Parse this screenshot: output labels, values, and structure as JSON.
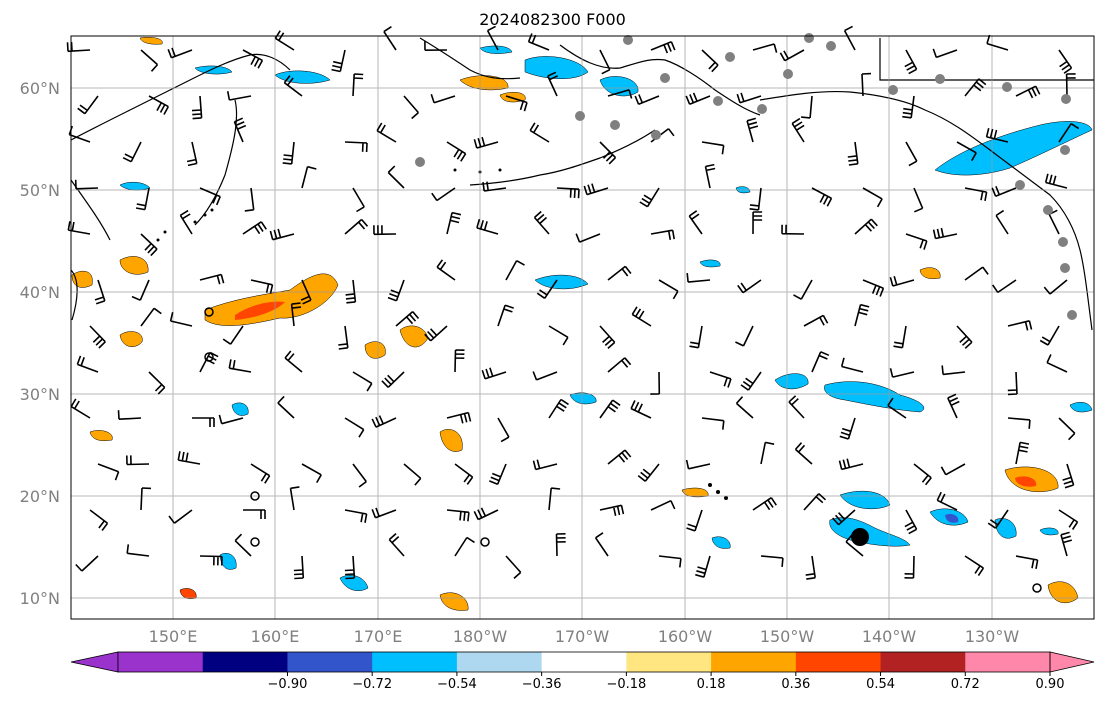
{
  "title": "2024082300 F000",
  "lat_labels": [
    "60°N",
    "50°N",
    "40°N",
    "30°N",
    "20°N",
    "10°N"
  ],
  "lon_labels": [
    "150°E",
    "160°E",
    "170°E",
    "180°W",
    "170°W",
    "160°W",
    "150°W",
    "140°W",
    "130°W"
  ],
  "colorbar": {
    "labels": [
      "−0.90",
      "−0.72",
      "−0.54",
      "−0.36",
      "−0.18",
      "0.18",
      "0.36",
      "0.54",
      "0.72",
      "0.90"
    ],
    "colors": [
      "#9933cc",
      "#000080",
      "#3355cc",
      "#00bfff",
      "#add8f0",
      "#ffffff",
      "#ffe680",
      "#ffa500",
      "#ff4500",
      "#b22222",
      "#ff88aa"
    ]
  },
  "map_colors": {
    "positive_low": "#ffa500",
    "positive_mid": "#ff4500",
    "negative_low": "#00bfff",
    "negative_faint": "#add8f0",
    "station_marker": "#808080"
  }
}
